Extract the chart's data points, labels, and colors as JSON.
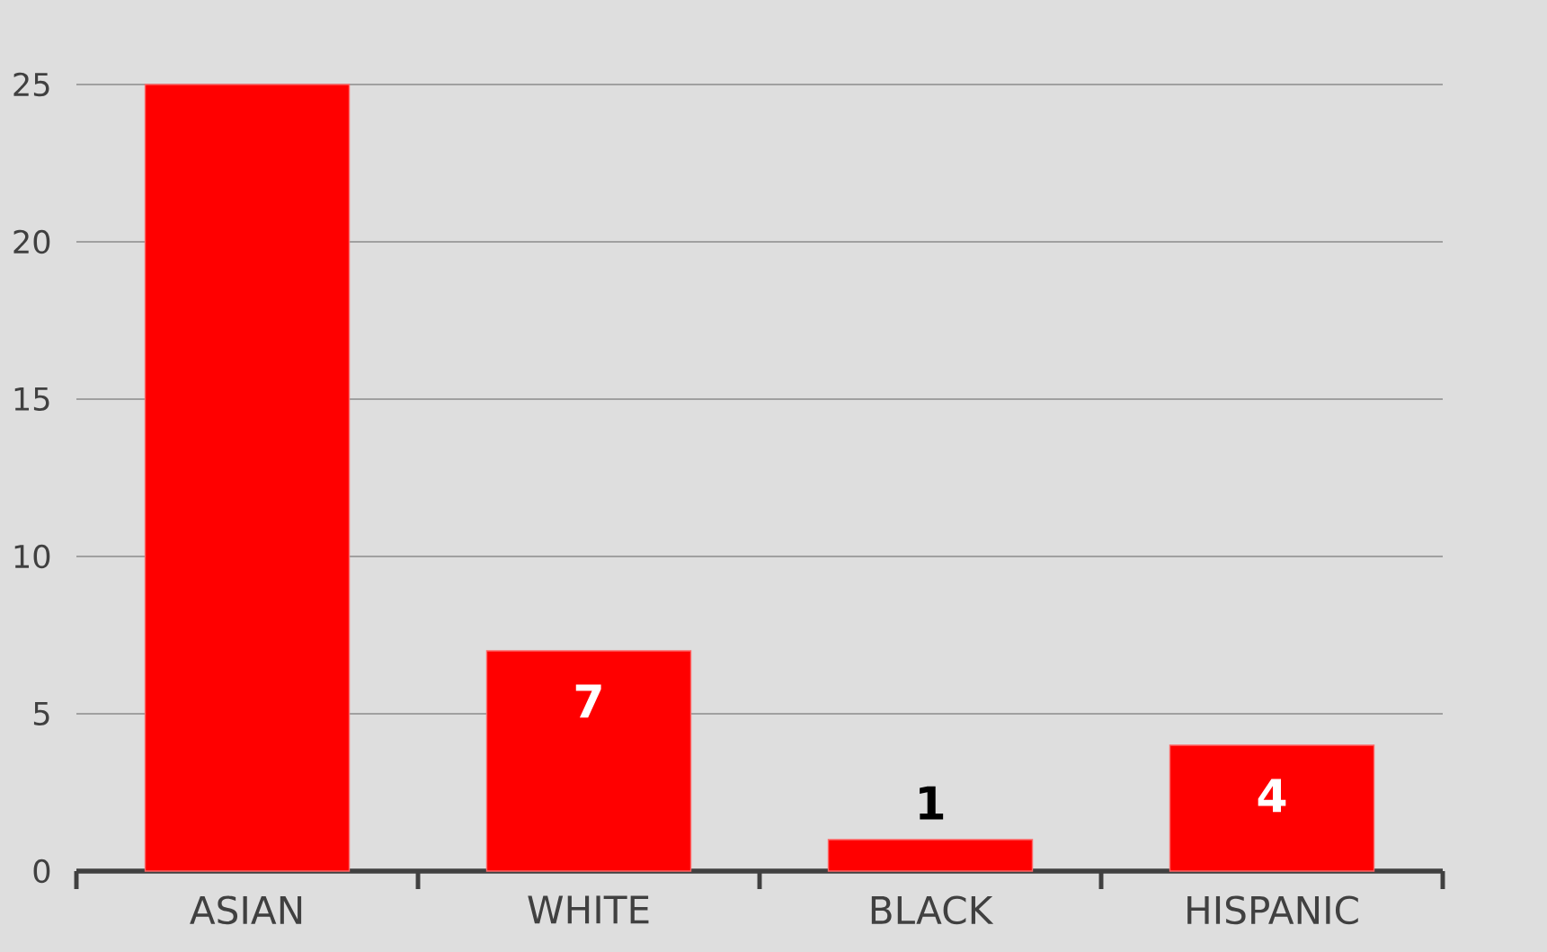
{
  "chart_data": {
    "type": "bar",
    "categories": [
      "ASIAN",
      "WHITE",
      "BLACK",
      "HISPANIC"
    ],
    "values": [
      25,
      7,
      1,
      4
    ],
    "value_labels": [
      null,
      "7",
      "1",
      "4"
    ],
    "color": "#ff0000",
    "ylim": [
      0,
      25
    ],
    "yticks": [
      0,
      5,
      10,
      15,
      20,
      25
    ],
    "grid": "y"
  }
}
